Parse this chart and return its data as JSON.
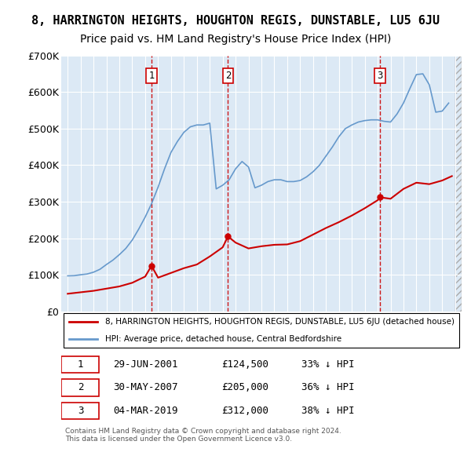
{
  "title": "8, HARRINGTON HEIGHTS, HOUGHTON REGIS, DUNSTABLE, LU5 6JU",
  "subtitle": "Price paid vs. HM Land Registry's House Price Index (HPI)",
  "title_fontsize": 11,
  "subtitle_fontsize": 10,
  "background_color": "#ffffff",
  "plot_bg_color": "#dce9f5",
  "ylim": [
    0,
    700000
  ],
  "yticks": [
    0,
    100000,
    200000,
    300000,
    400000,
    500000,
    600000,
    700000
  ],
  "ytick_labels": [
    "£0",
    "£100K",
    "£200K",
    "£300K",
    "£400K",
    "£500K",
    "£600K",
    "£700K"
  ],
  "xlim_start": 1994.5,
  "xlim_end": 2025.5,
  "xticks": [
    1995,
    1996,
    1997,
    1998,
    1999,
    2000,
    2001,
    2002,
    2003,
    2004,
    2005,
    2006,
    2007,
    2008,
    2009,
    2010,
    2011,
    2012,
    2013,
    2014,
    2015,
    2016,
    2017,
    2018,
    2019,
    2020,
    2021,
    2022,
    2023,
    2024,
    2025
  ],
  "grid_color": "#ffffff",
  "sale_color": "#cc0000",
  "hpi_color": "#6699cc",
  "sale_label": "8, HARRINGTON HEIGHTS, HOUGHTON REGIS, DUNSTABLE, LU5 6JU (detached house)",
  "hpi_label": "HPI: Average price, detached house, Central Bedfordshire",
  "sales": [
    {
      "date_x": 2001.49,
      "price": 124500,
      "label": "1"
    },
    {
      "date_x": 2007.41,
      "price": 205000,
      "label": "2"
    },
    {
      "date_x": 2019.17,
      "price": 312000,
      "label": "3"
    }
  ],
  "table_rows": [
    [
      "1",
      "29-JUN-2001",
      "£124,500",
      "33% ↓ HPI"
    ],
    [
      "2",
      "30-MAY-2007",
      "£205,000",
      "36% ↓ HPI"
    ],
    [
      "3",
      "04-MAR-2019",
      "£312,000",
      "38% ↓ HPI"
    ]
  ],
  "footer": "Contains HM Land Registry data © Crown copyright and database right 2024.\nThis data is licensed under the Open Government Licence v3.0.",
  "hpi_data_x": [
    1995.0,
    1995.5,
    1996.0,
    1996.5,
    1997.0,
    1997.5,
    1998.0,
    1998.5,
    1999.0,
    1999.5,
    2000.0,
    2000.5,
    2001.0,
    2001.5,
    2002.0,
    2002.5,
    2003.0,
    2003.5,
    2004.0,
    2004.5,
    2005.0,
    2005.5,
    2006.0,
    2006.5,
    2007.0,
    2007.5,
    2008.0,
    2008.5,
    2009.0,
    2009.5,
    2010.0,
    2010.5,
    2011.0,
    2011.5,
    2012.0,
    2012.5,
    2013.0,
    2013.5,
    2014.0,
    2014.5,
    2015.0,
    2015.5,
    2016.0,
    2016.5,
    2017.0,
    2017.5,
    2018.0,
    2018.5,
    2019.0,
    2019.5,
    2020.0,
    2020.5,
    2021.0,
    2021.5,
    2022.0,
    2022.5,
    2023.0,
    2023.5,
    2024.0,
    2024.5
  ],
  "hpi_data_y": [
    97000,
    97500,
    100000,
    102000,
    107000,
    115000,
    128000,
    140000,
    155000,
    172000,
    195000,
    225000,
    258000,
    295000,
    340000,
    390000,
    435000,
    465000,
    490000,
    505000,
    510000,
    510000,
    515000,
    335000,
    345000,
    360000,
    390000,
    410000,
    395000,
    338000,
    345000,
    355000,
    360000,
    360000,
    355000,
    355000,
    358000,
    368000,
    382000,
    400000,
    425000,
    450000,
    478000,
    500000,
    510000,
    518000,
    522000,
    524000,
    524000,
    520000,
    518000,
    540000,
    570000,
    610000,
    648000,
    650000,
    620000,
    545000,
    548000,
    570000
  ],
  "property_data_x": [
    1995.0,
    1996.0,
    1997.0,
    1998.0,
    1999.0,
    2000.0,
    2001.0,
    2001.49,
    2002.0,
    2003.0,
    2004.0,
    2005.0,
    2006.0,
    2007.0,
    2007.41,
    2008.0,
    2009.0,
    2010.0,
    2011.0,
    2012.0,
    2013.0,
    2014.0,
    2015.0,
    2016.0,
    2017.0,
    2018.0,
    2019.0,
    2019.17,
    2020.0,
    2021.0,
    2022.0,
    2023.0,
    2024.0,
    2024.75
  ],
  "property_data_y": [
    48000,
    52000,
    56000,
    62000,
    68000,
    78000,
    95000,
    124500,
    92000,
    105000,
    118000,
    128000,
    150000,
    175000,
    205000,
    188000,
    172000,
    178000,
    182000,
    183000,
    192000,
    210000,
    228000,
    244000,
    262000,
    282000,
    304000,
    312000,
    308000,
    335000,
    352000,
    348000,
    358000,
    370000
  ]
}
